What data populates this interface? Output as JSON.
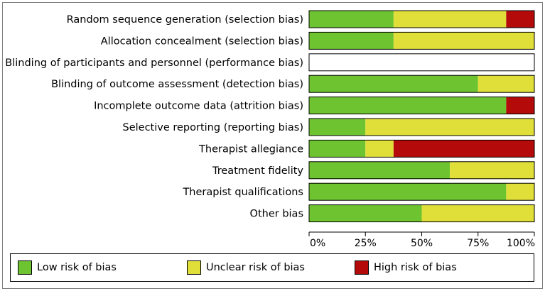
{
  "chart_data": {
    "type": "bar",
    "orientation": "horizontal",
    "stacked": true,
    "categories": [
      "Random sequence generation (selection bias)",
      "Allocation concealment (selection bias)",
      "Blinding of participants and personnel (performance bias)",
      "Blinding of outcome assessment (detection bias)",
      "Incomplete outcome data (attrition bias)",
      "Selective reporting (reporting bias)",
      "Therapist allegiance",
      "Treatment fidelity",
      "Therapist qualifications",
      "Other bias"
    ],
    "series": [
      {
        "name": "Low risk of bias",
        "color": "#6ec330",
        "values": [
          37.5,
          37.5,
          0,
          75,
          87.5,
          25,
          25,
          62.5,
          87.5,
          50
        ]
      },
      {
        "name": "Unclear risk of bias",
        "color": "#e0df3a",
        "values": [
          50,
          62.5,
          0,
          25,
          0,
          75,
          12.5,
          37.5,
          12.5,
          50
        ]
      },
      {
        "name": "High risk of bias",
        "color": "#b50a0a",
        "values": [
          12.5,
          0,
          0,
          0,
          12.5,
          0,
          62.5,
          0,
          0,
          0
        ]
      }
    ],
    "xlim": [
      0,
      100
    ],
    "xticks": [
      "0%",
      "25%",
      "50%",
      "75%",
      "100%"
    ],
    "xlabel": "",
    "ylabel": "",
    "title": "",
    "legend_position": "bottom"
  }
}
